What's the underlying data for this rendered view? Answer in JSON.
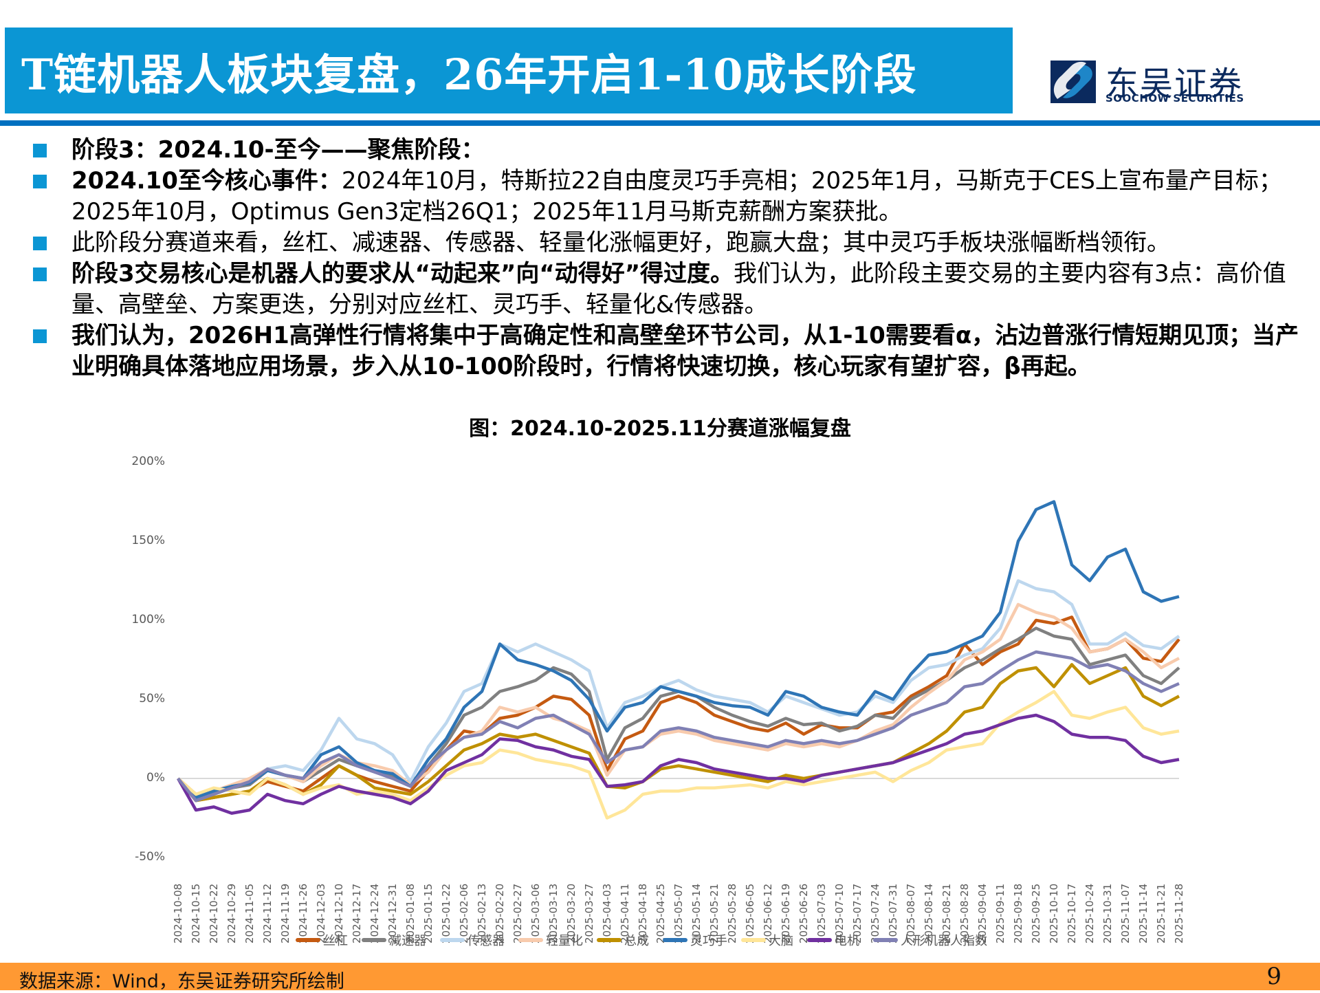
{
  "header": {
    "title": "T链机器人板块复盘，26年开启1-10成长阶段",
    "logo_cn": "东吴证券",
    "logo_en": "SOOCHOW SECURITIES"
  },
  "bullets": [
    {
      "bold": "阶段3：2024.10-至今——聚焦阶段：",
      "text": ""
    },
    {
      "bold": "2024.10至今核心事件：",
      "text": "2024年10月，特斯拉22自由度灵巧手亮相；2025年1月，马斯克于CES上宣布量产目标；2025年10月，Optimus Gen3定档26Q1；2025年11月马斯克薪酬方案获批。"
    },
    {
      "bold": "",
      "text": "此阶段分赛道来看，丝杠、减速器、传感器、轻量化涨幅更好，跑赢大盘；其中灵巧手板块涨幅断档领衔。"
    },
    {
      "bold": "阶段3交易核心是机器人的要求从“动起来”向“动得好”得过度。",
      "text": "我们认为，此阶段主要交易的主要内容有3点：高价值量、高壁垒、方案更迭，分别对应丝杠、灵巧手、轻量化&传感器。"
    },
    {
      "bold": "我们认为，2026H1高弹性行情将集中于高确定性和高壁垒环节公司，从1-10需要看α，沾边普涨行情短期见顶；当产业明确具体落地应用场景，步入从10-100阶段时，行情将快速切换，核心玩家有望扩容，β再起。",
      "text": ""
    }
  ],
  "footer": {
    "source": "数据来源：Wind，东吴证券研究所绘制",
    "page": "9"
  },
  "colors": {
    "header_band": "#0b96d4",
    "rule": "#0070c0",
    "footer": "#ff9933"
  },
  "chart_data": {
    "type": "line",
    "title": "图：2024.10-2025.11分赛道涨幅复盘",
    "xlabel": "",
    "ylabel": "",
    "ylim": [
      -50,
      200
    ],
    "yticks": [
      "200%",
      "150%",
      "100%",
      "50%",
      "0%",
      "-50%"
    ],
    "ytick_values": [
      200,
      150,
      100,
      50,
      0,
      -50
    ],
    "grid": false,
    "legend_position": "bottom",
    "x": [
      "2024-10-08",
      "2024-10-15",
      "2024-10-22",
      "2024-10-29",
      "2024-11-05",
      "2024-11-12",
      "2024-11-19",
      "2024-11-26",
      "2024-12-03",
      "2024-12-10",
      "2024-12-17",
      "2024-12-24",
      "2024-12-31",
      "2025-01-08",
      "2025-01-15",
      "2025-01-22",
      "2025-02-06",
      "2025-02-13",
      "2025-02-20",
      "2025-02-27",
      "2025-03-06",
      "2025-03-13",
      "2025-03-20",
      "2025-03-27",
      "2025-04-03",
      "2025-04-11",
      "2025-04-18",
      "2025-04-25",
      "2025-05-07",
      "2025-05-14",
      "2025-05-21",
      "2025-05-28",
      "2025-06-05",
      "2025-06-12",
      "2025-06-19",
      "2025-06-26",
      "2025-07-03",
      "2025-07-10",
      "2025-07-17",
      "2025-07-24",
      "2025-07-31",
      "2025-08-07",
      "2025-08-14",
      "2025-08-21",
      "2025-08-28",
      "2025-09-04",
      "2025-09-11",
      "2025-09-18",
      "2025-09-25",
      "2025-10-10",
      "2025-10-17",
      "2025-10-24",
      "2025-10-31",
      "2025-11-07",
      "2025-11-14",
      "2025-11-21",
      "2025-11-28"
    ],
    "series": [
      {
        "name": "丝杠",
        "color": "#c55a11",
        "values": [
          0,
          -14,
          -12,
          -10,
          -8,
          -2,
          -5,
          -8,
          0,
          8,
          2,
          -2,
          -5,
          -8,
          5,
          18,
          30,
          28,
          38,
          40,
          45,
          52,
          50,
          40,
          5,
          25,
          30,
          48,
          52,
          48,
          40,
          36,
          32,
          30,
          35,
          28,
          34,
          32,
          32,
          40,
          42,
          52,
          58,
          65,
          85,
          72,
          80,
          85,
          100,
          98,
          102,
          80,
          82,
          88,
          76,
          74,
          88
        ]
      },
      {
        "name": "减速器",
        "color": "#808080",
        "values": [
          0,
          -10,
          -8,
          -6,
          -4,
          5,
          2,
          -2,
          5,
          12,
          8,
          5,
          2,
          -3,
          8,
          22,
          40,
          45,
          55,
          58,
          62,
          70,
          66,
          55,
          12,
          32,
          38,
          52,
          55,
          52,
          45,
          40,
          36,
          33,
          38,
          34,
          35,
          30,
          33,
          40,
          38,
          50,
          56,
          62,
          70,
          75,
          82,
          88,
          95,
          90,
          88,
          72,
          75,
          78,
          65,
          60,
          70
        ]
      },
      {
        "name": "传感器",
        "color": "#bdd7ee",
        "values": [
          0,
          -12,
          -8,
          -6,
          -2,
          6,
          8,
          5,
          18,
          38,
          25,
          22,
          15,
          -2,
          20,
          35,
          55,
          60,
          85,
          80,
          85,
          80,
          75,
          68,
          32,
          48,
          52,
          58,
          62,
          56,
          52,
          50,
          48,
          42,
          52,
          48,
          44,
          40,
          42,
          52,
          48,
          62,
          70,
          72,
          78,
          82,
          95,
          125,
          120,
          118,
          110,
          85,
          85,
          92,
          84,
          82,
          90
        ]
      },
      {
        "name": "轻量化",
        "color": "#f8cbad",
        "values": [
          0,
          -10,
          -8,
          -4,
          0,
          6,
          2,
          -2,
          8,
          15,
          10,
          8,
          5,
          -4,
          4,
          18,
          26,
          30,
          45,
          42,
          45,
          38,
          35,
          30,
          2,
          18,
          20,
          28,
          30,
          28,
          24,
          22,
          20,
          18,
          22,
          20,
          22,
          20,
          24,
          30,
          34,
          45,
          54,
          62,
          75,
          80,
          88,
          110,
          105,
          102,
          95,
          80,
          82,
          88,
          80,
          70,
          76
        ]
      },
      {
        "name": "总成",
        "color": "#bf9000",
        "values": [
          0,
          -14,
          -12,
          -10,
          -8,
          0,
          -4,
          -10,
          -4,
          8,
          2,
          -6,
          -8,
          -10,
          -2,
          8,
          18,
          22,
          28,
          26,
          28,
          24,
          20,
          16,
          -5,
          -6,
          -2,
          6,
          8,
          6,
          4,
          2,
          0,
          -2,
          2,
          0,
          2,
          4,
          6,
          8,
          10,
          16,
          22,
          30,
          42,
          45,
          60,
          68,
          70,
          58,
          72,
          60,
          65,
          70,
          52,
          46,
          52
        ]
      },
      {
        "name": "灵巧手",
        "color": "#2e75b6",
        "values": [
          0,
          -12,
          -8,
          -5,
          -3,
          5,
          2,
          0,
          15,
          20,
          10,
          5,
          3,
          -5,
          12,
          25,
          45,
          55,
          85,
          75,
          72,
          68,
          62,
          50,
          30,
          45,
          48,
          58,
          55,
          52,
          48,
          46,
          45,
          40,
          55,
          52,
          45,
          42,
          40,
          55,
          50,
          66,
          78,
          80,
          85,
          90,
          105,
          150,
          170,
          175,
          135,
          125,
          140,
          145,
          118,
          112,
          115
        ]
      },
      {
        "name": "大脑",
        "color": "#ffe699",
        "values": [
          0,
          -10,
          -6,
          -8,
          -10,
          0,
          -4,
          -10,
          -6,
          -4,
          -10,
          -8,
          -10,
          -14,
          -6,
          2,
          8,
          10,
          18,
          16,
          12,
          10,
          8,
          4,
          -25,
          -20,
          -10,
          -8,
          -8,
          -6,
          -6,
          -5,
          -4,
          -6,
          -2,
          -4,
          -2,
          0,
          2,
          4,
          -2,
          5,
          10,
          18,
          20,
          22,
          35,
          42,
          48,
          55,
          40,
          38,
          42,
          45,
          32,
          28,
          30
        ]
      },
      {
        "name": "电机",
        "color": "#7030a0",
        "values": [
          0,
          -20,
          -18,
          -22,
          -20,
          -10,
          -14,
          -16,
          -10,
          -5,
          -8,
          -10,
          -12,
          -16,
          -8,
          5,
          10,
          15,
          25,
          24,
          20,
          18,
          14,
          12,
          -5,
          -4,
          -2,
          8,
          12,
          10,
          6,
          4,
          2,
          0,
          0,
          -2,
          2,
          4,
          6,
          8,
          10,
          14,
          18,
          22,
          28,
          30,
          34,
          38,
          40,
          36,
          28,
          26,
          26,
          24,
          14,
          10,
          12
        ]
      },
      {
        "name": "人形机器人指数",
        "color": "#8080b4",
        "values": [
          0,
          -14,
          -10,
          -6,
          -2,
          6,
          2,
          0,
          10,
          15,
          8,
          4,
          0,
          -5,
          8,
          18,
          26,
          28,
          36,
          32,
          38,
          40,
          34,
          28,
          10,
          18,
          20,
          30,
          32,
          30,
          26,
          24,
          22,
          20,
          24,
          22,
          24,
          22,
          24,
          28,
          32,
          40,
          44,
          48,
          58,
          60,
          68,
          75,
          80,
          78,
          76,
          70,
          72,
          68,
          60,
          55,
          60
        ]
      }
    ]
  }
}
